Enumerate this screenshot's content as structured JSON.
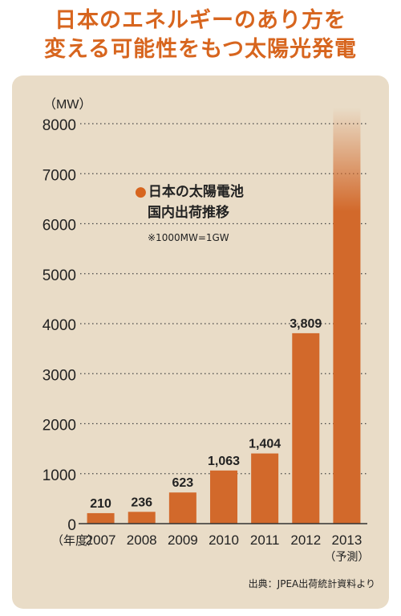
{
  "title": {
    "line1": "日本のエネルギーのあり方を",
    "line2": "変える可能性をもつ太陽光発電"
  },
  "colors": {
    "accent": "#d7651e",
    "bar": "#d2692b",
    "panel": "#e9dcc7"
  },
  "legend": {
    "marker": "●",
    "line1": "日本の太陽電池",
    "line2": "国内出荷推移",
    "note": "※1000MW=1GW"
  },
  "source": "出典：JPEA出荷統計資料より",
  "chart_data": {
    "type": "bar",
    "title": "日本の太陽電池 国内出荷推移",
    "ylabel": "（MW）",
    "xlabel": "（年度）",
    "categories": [
      "2007",
      "2008",
      "2009",
      "2010",
      "2011",
      "2012",
      "2013"
    ],
    "category_sublabels": [
      "",
      "",
      "",
      "",
      "",
      "",
      "（予測）"
    ],
    "values": [
      210,
      236,
      623,
      1063,
      1404,
      3809,
      8000
    ],
    "value_labels": [
      "210",
      "236",
      "623",
      "1,063",
      "1,404",
      "3,809",
      ""
    ],
    "ylim": [
      0,
      8000
    ],
    "yticks": [
      0,
      1000,
      2000,
      3000,
      4000,
      5000,
      6000,
      7000,
      8000
    ],
    "grid": true,
    "legend_position": "top-left"
  }
}
